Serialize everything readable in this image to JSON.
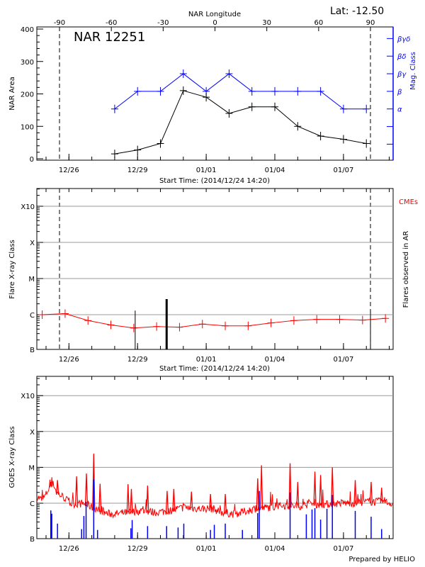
{
  "header": {
    "lat_label": "Lat: -12.50",
    "region_label": "NAR 12251",
    "footer": "Prepared by HELIO"
  },
  "colors": {
    "area": "#000000",
    "mag_class": "#0000ff",
    "flare_fit": "#ff0000",
    "goes_long": "#ff0000",
    "goes_short": "#0000ff",
    "grid": "#999999"
  },
  "chart_data": [
    {
      "type": "line",
      "title": "NAR 12251",
      "xlabel": "Start Time: (2014/12/24 14:20)",
      "ylabel": "NAR Area",
      "y2label": "Mag. Class",
      "top_xlabel": "NAR Longitude",
      "start": "2014-12-24T14:20",
      "x_tick_labels": [
        "12/26",
        "12/29",
        "01/01",
        "01/04",
        "01/07"
      ],
      "x_ticks": [
        "2014-12-26T00:00",
        "2014-12-29T00:00",
        "2015-01-01T00:00",
        "2015-01-04T00:00",
        "2015-01-07T00:00"
      ],
      "top_tick_labels": [
        "-90",
        "-60",
        "-30",
        "0",
        "30",
        "60",
        "90"
      ],
      "top_ticks": [
        -90,
        -60,
        -30,
        0,
        30,
        60,
        90
      ],
      "limb_longitudes": [
        -90,
        90
      ],
      "ylim": [
        0,
        400
      ],
      "y_tick_labels": [
        "0",
        "100",
        "200",
        "300",
        "400"
      ],
      "y_ticks": [
        0,
        100,
        200,
        300,
        400
      ],
      "y2_classes": [
        "",
        "",
        "α",
        "β",
        "βγ",
        "βδ",
        "βγδ"
      ],
      "y2_tick_labels": [
        "α",
        "β",
        "βγ",
        "βδ",
        "βγδ"
      ],
      "x": [
        "2014-12-28T00:00",
        "2014-12-29T00:00",
        "2014-12-30T00:00",
        "2014-12-31T00:00",
        "2015-01-01T00:00",
        "2015-01-02T00:00",
        "2015-01-03T00:00",
        "2015-01-04T00:00",
        "2015-01-05T00:00",
        "2015-01-06T00:00",
        "2015-01-07T00:00",
        "2015-01-08T00:00"
      ],
      "series": [
        {
          "name": "NAR Area",
          "values": [
            15,
            27,
            47,
            210,
            190,
            140,
            160,
            160,
            100,
            70,
            60,
            47
          ]
        },
        {
          "name": "Mag. Class",
          "values": [
            "α",
            "β",
            "β",
            "βγ",
            "β",
            "βγ",
            "β",
            "β",
            "β",
            "β",
            "α",
            "α"
          ]
        }
      ]
    },
    {
      "type": "line",
      "xlabel": "Start Time: (2014/12/24 14:20)",
      "ylabel": "Flare X-ray Class",
      "y2label": "Flares observed in AR",
      "legend": "CMEs",
      "y_scale": "log",
      "y_tick_labels": [
        "B",
        "C",
        "M",
        "X",
        "X10"
      ],
      "y_ticks": [
        1e-07,
        1e-06,
        1e-05,
        0.0001,
        0.001
      ],
      "grid": true,
      "x_tick_labels": [
        "12/26",
        "12/29",
        "01/01",
        "01/04",
        "01/07"
      ],
      "background_x": [
        "2014-12-24T20:00",
        "2014-12-25T20:00",
        "2014-12-26T20:00",
        "2014-12-27T20:00",
        "2014-12-28T20:00",
        "2014-12-29T20:00",
        "2014-12-30T20:00",
        "2014-12-31T20:00",
        "2015-01-01T20:00",
        "2015-01-02T20:00",
        "2015-01-03T20:00",
        "2015-01-04T20:00",
        "2015-01-05T20:00",
        "2015-01-06T20:00",
        "2015-01-07T20:00",
        "2015-01-08T20:00"
      ],
      "background_flux": [
        1e-06,
        1.07e-06,
        6.9e-07,
        5.2e-07,
        4.3e-07,
        4.7e-07,
        4.5e-07,
        5.5e-07,
        4.9e-07,
        4.9e-07,
        5.9e-07,
        6.9e-07,
        7.4e-07,
        7.4e-07,
        7.1e-07,
        7.9e-07
      ],
      "flares": [
        {
          "time": "2014-12-28T21:30",
          "flux": 1.3e-06
        },
        {
          "time": "2014-12-30T06:30",
          "flux": 2.7e-06
        },
        {
          "time": "2015-01-08T04:20",
          "flux": 1.3e-06
        }
      ]
    },
    {
      "type": "line",
      "ylabel": "GOES X-ray Class",
      "y_scale": "log",
      "y_tick_labels": [
        "B",
        "C",
        "M",
        "X",
        "X10"
      ],
      "y_ticks": [
        1e-07,
        1e-06,
        1e-05,
        0.0001,
        0.001
      ],
      "grid": true,
      "x_tick_labels": [
        "12/26",
        "12/29",
        "01/01",
        "01/04",
        "01/07"
      ],
      "long_channel_baseline": [
        [
          "2014-12-24T14:00",
          1.4e-06
        ],
        [
          "2014-12-24T20:00",
          1.1e-06
        ],
        [
          "2014-12-25T00:00",
          1.6e-06
        ],
        [
          "2014-12-25T04:00",
          2.7e-06
        ],
        [
          "2014-12-25T08:00",
          3.1e-06
        ],
        [
          "2014-12-25T11:00",
          1.8e-06
        ],
        [
          "2014-12-25T19:00",
          1.3e-06
        ],
        [
          "2014-12-26T02:00",
          8.7e-07
        ],
        [
          "2014-12-26T17:00",
          8.7e-07
        ],
        [
          "2014-12-27T00:30",
          6.9e-07
        ],
        [
          "2014-12-27T08:00",
          5.8e-07
        ],
        [
          "2014-12-27T15:30",
          4.7e-07
        ],
        [
          "2014-12-27T23:00",
          4.5e-07
        ],
        [
          "2014-12-28T14:00",
          5e-07
        ],
        [
          "2014-12-29T04:30",
          5.6e-07
        ],
        [
          "2014-12-29T19:30",
          5e-07
        ],
        [
          "2014-12-30T10:00",
          5.6e-07
        ],
        [
          "2014-12-31T01:00",
          6.9e-07
        ],
        [
          "2014-12-31T16:00",
          6.4e-07
        ],
        [
          "2015-01-01T07:00",
          6.4e-07
        ],
        [
          "2015-01-01T14:00",
          5.2e-07
        ],
        [
          "2015-01-02T05:00",
          4.5e-07
        ],
        [
          "2015-01-02T12:00",
          4.9e-07
        ],
        [
          "2015-01-03T03:00",
          6.4e-07
        ],
        [
          "2015-01-03T18:00",
          6.9e-07
        ],
        [
          "2015-01-04T09:00",
          7.8e-07
        ],
        [
          "2015-01-05T00:00",
          7.4e-07
        ],
        [
          "2015-01-05T14:30",
          8.7e-07
        ],
        [
          "2015-01-06T05:00",
          8.3e-07
        ],
        [
          "2015-01-06T20:00",
          9.1e-07
        ],
        [
          "2015-01-07T11:00",
          9.1e-07
        ],
        [
          "2015-01-08T02:00",
          1e-06
        ],
        [
          "2015-01-08T17:00",
          1e-06
        ],
        [
          "2015-01-09T02:00",
          9.1e-07
        ]
      ],
      "long_channel_peaks": [
        [
          "2014-12-25T05:00",
          3.9e-06
        ],
        [
          "2014-12-25T12:00",
          4.4e-06
        ],
        [
          "2014-12-26T08:00",
          5.6e-06
        ],
        [
          "2014-12-26T18:20",
          6.7e-06
        ],
        [
          "2014-12-27T02:00",
          2.4e-05
        ],
        [
          "2014-12-27T08:40",
          3.5e-06
        ],
        [
          "2014-12-28T14:00",
          3.4e-06
        ],
        [
          "2014-12-28T17:30",
          2.5e-06
        ],
        [
          "2014-12-29T10:30",
          3.1e-06
        ],
        [
          "2014-12-30T07:00",
          2.2e-06
        ],
        [
          "2014-12-30T14:00",
          2.5e-06
        ],
        [
          "2014-12-31T08:30",
          2.1e-06
        ],
        [
          "2015-01-01T04:30",
          1.8e-06
        ],
        [
          "2015-01-01T20:00",
          1.8e-06
        ],
        [
          "2015-01-03T06:00",
          4.9e-06
        ],
        [
          "2015-01-03T10:00",
          1.14e-05
        ],
        [
          "2015-01-04T16:00",
          1.3e-05
        ],
        [
          "2015-01-05T00:00",
          3.9e-06
        ],
        [
          "2015-01-05T18:00",
          7.6e-06
        ],
        [
          "2015-01-06T00:00",
          6.1e-06
        ],
        [
          "2015-01-06T12:20",
          1e-05
        ],
        [
          "2015-01-07T12:20",
          4.4e-06
        ],
        [
          "2015-01-08T05:00",
          3.9e-06
        ],
        [
          "2015-01-08T16:00",
          2.7e-06
        ]
      ],
      "short_channel_peaks": [
        [
          "2014-12-25T05:00",
          6.3e-07
        ],
        [
          "2014-12-25T06:00",
          5.1e-07
        ],
        [
          "2014-12-25T12:00",
          2.7e-07
        ],
        [
          "2014-12-26T13:20",
          1.9e-07
        ],
        [
          "2014-12-26T15:40",
          4.4e-07
        ],
        [
          "2014-12-26T18:00",
          1.1e-06
        ],
        [
          "2014-12-27T02:00",
          4.6e-06
        ],
        [
          "2014-12-27T06:00",
          1.8e-07
        ],
        [
          "2014-12-28T17:00",
          2e-07
        ],
        [
          "2014-12-28T18:20",
          3.4e-07
        ],
        [
          "2014-12-29T10:30",
          2.3e-07
        ],
        [
          "2014-12-30T06:30",
          2.3e-07
        ],
        [
          "2014-12-30T18:30",
          2.1e-07
        ],
        [
          "2014-12-31T00:30",
          2.7e-07
        ],
        [
          "2015-01-01T04:30",
          1.8e-07
        ],
        [
          "2015-01-01T08:30",
          2.5e-07
        ],
        [
          "2015-01-01T20:00",
          2.7e-07
        ],
        [
          "2015-01-02T14:00",
          1.8e-07
        ],
        [
          "2015-01-03T06:00",
          5.3e-07
        ],
        [
          "2015-01-03T07:40",
          2.2e-06
        ],
        [
          "2015-01-04T16:00",
          2e-06
        ],
        [
          "2015-01-05T09:00",
          4.9e-07
        ],
        [
          "2015-01-05T15:00",
          6.7e-07
        ],
        [
          "2015-01-05T18:00",
          7.3e-07
        ],
        [
          "2015-01-06T00:00",
          3.5e-07
        ],
        [
          "2015-01-06T06:40",
          7e-07
        ],
        [
          "2015-01-06T12:20",
          1.7e-06
        ],
        [
          "2015-01-07T12:20",
          6.1e-07
        ],
        [
          "2015-01-08T05:00",
          4.2e-07
        ],
        [
          "2015-01-08T16:00",
          1.9e-07
        ]
      ]
    }
  ]
}
